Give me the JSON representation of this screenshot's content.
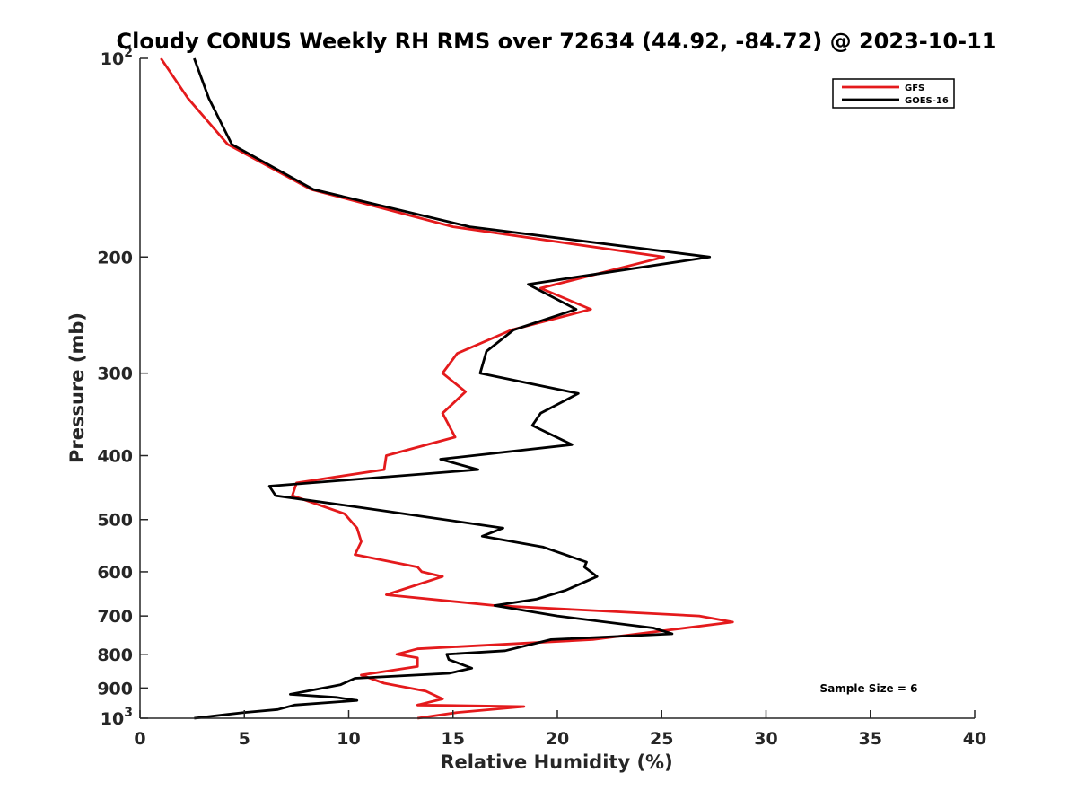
{
  "chart_data": {
    "type": "line",
    "title": "Cloudy CONUS Weekly RH RMS over 72634 (44.92, -84.72) @ 2023-10-11",
    "xlabel": "Relative Humidity (%)",
    "ylabel": "Pressure (mb)",
    "xlim": [
      0,
      40
    ],
    "ylim": [
      100,
      1000
    ],
    "y_scale": "log",
    "y_reversed": true,
    "grid": false,
    "legend_position": "top-right",
    "x_ticks": [
      "0",
      "5",
      "10",
      "15",
      "20",
      "25",
      "30",
      "35",
      "40"
    ],
    "y_ticks": [
      {
        "value": 100,
        "base": "10",
        "exp": "2"
      },
      {
        "value": 200,
        "label": "200"
      },
      {
        "value": 300,
        "label": "300"
      },
      {
        "value": 400,
        "label": "400"
      },
      {
        "value": 500,
        "label": "500"
      },
      {
        "value": 600,
        "label": "600"
      },
      {
        "value": 700,
        "label": "700"
      },
      {
        "value": 800,
        "label": "800"
      },
      {
        "value": 900,
        "label": "900"
      },
      {
        "value": 1000,
        "base": "10",
        "exp": "3"
      }
    ],
    "annotation": "Sample Size = 6",
    "series": [
      {
        "name": "GFS",
        "color": "#e41a1c",
        "points": [
          [
            1.0,
            100
          ],
          [
            2.3,
            115
          ],
          [
            4.2,
            135
          ],
          [
            8.2,
            158
          ],
          [
            15.0,
            180
          ],
          [
            25.1,
            200
          ],
          [
            19.2,
            223
          ],
          [
            21.6,
            240
          ],
          [
            17.8,
            258
          ],
          [
            15.2,
            280
          ],
          [
            14.5,
            300
          ],
          [
            15.6,
            320
          ],
          [
            14.5,
            345
          ],
          [
            15.1,
            375
          ],
          [
            11.8,
            400
          ],
          [
            11.7,
            420
          ],
          [
            7.5,
            440
          ],
          [
            7.3,
            460
          ],
          [
            9.8,
            490
          ],
          [
            10.4,
            515
          ],
          [
            10.6,
            540
          ],
          [
            10.3,
            565
          ],
          [
            13.3,
            590
          ],
          [
            13.5,
            600
          ],
          [
            14.5,
            610
          ],
          [
            11.8,
            650
          ],
          [
            17.0,
            675
          ],
          [
            26.8,
            700
          ],
          [
            28.4,
            715
          ],
          [
            21.7,
            760
          ],
          [
            13.3,
            785
          ],
          [
            12.3,
            800
          ],
          [
            13.3,
            810
          ],
          [
            13.3,
            835
          ],
          [
            10.6,
            860
          ],
          [
            11.7,
            885
          ],
          [
            13.7,
            910
          ],
          [
            14.5,
            935
          ],
          [
            13.3,
            955
          ],
          [
            18.4,
            960
          ],
          [
            15.2,
            980
          ],
          [
            13.3,
            1000
          ]
        ]
      },
      {
        "name": "GOES-16",
        "color": "#000000",
        "points": [
          [
            2.6,
            100
          ],
          [
            3.3,
            115
          ],
          [
            4.4,
            135
          ],
          [
            8.3,
            158
          ],
          [
            15.8,
            180
          ],
          [
            27.3,
            200
          ],
          [
            18.6,
            220
          ],
          [
            20.9,
            240
          ],
          [
            17.9,
            258
          ],
          [
            16.6,
            278
          ],
          [
            16.3,
            300
          ],
          [
            21.0,
            322
          ],
          [
            19.2,
            345
          ],
          [
            18.8,
            360
          ],
          [
            20.7,
            385
          ],
          [
            14.4,
            405
          ],
          [
            16.2,
            420
          ],
          [
            6.2,
            445
          ],
          [
            6.5,
            460
          ],
          [
            10.7,
            480
          ],
          [
            17.4,
            515
          ],
          [
            16.4,
            530
          ],
          [
            19.3,
            550
          ],
          [
            21.4,
            580
          ],
          [
            21.3,
            590
          ],
          [
            21.9,
            610
          ],
          [
            20.4,
            640
          ],
          [
            19.0,
            660
          ],
          [
            17.0,
            675
          ],
          [
            20.0,
            700
          ],
          [
            24.6,
            730
          ],
          [
            25.5,
            745
          ],
          [
            19.7,
            760
          ],
          [
            17.5,
            790
          ],
          [
            14.7,
            800
          ],
          [
            14.8,
            815
          ],
          [
            15.9,
            840
          ],
          [
            14.8,
            855
          ],
          [
            10.3,
            870
          ],
          [
            9.6,
            890
          ],
          [
            7.2,
            920
          ],
          [
            9.4,
            930
          ],
          [
            10.4,
            940
          ],
          [
            7.4,
            955
          ],
          [
            6.6,
            970
          ],
          [
            5.0,
            980
          ],
          [
            2.6,
            1000
          ]
        ]
      }
    ]
  }
}
